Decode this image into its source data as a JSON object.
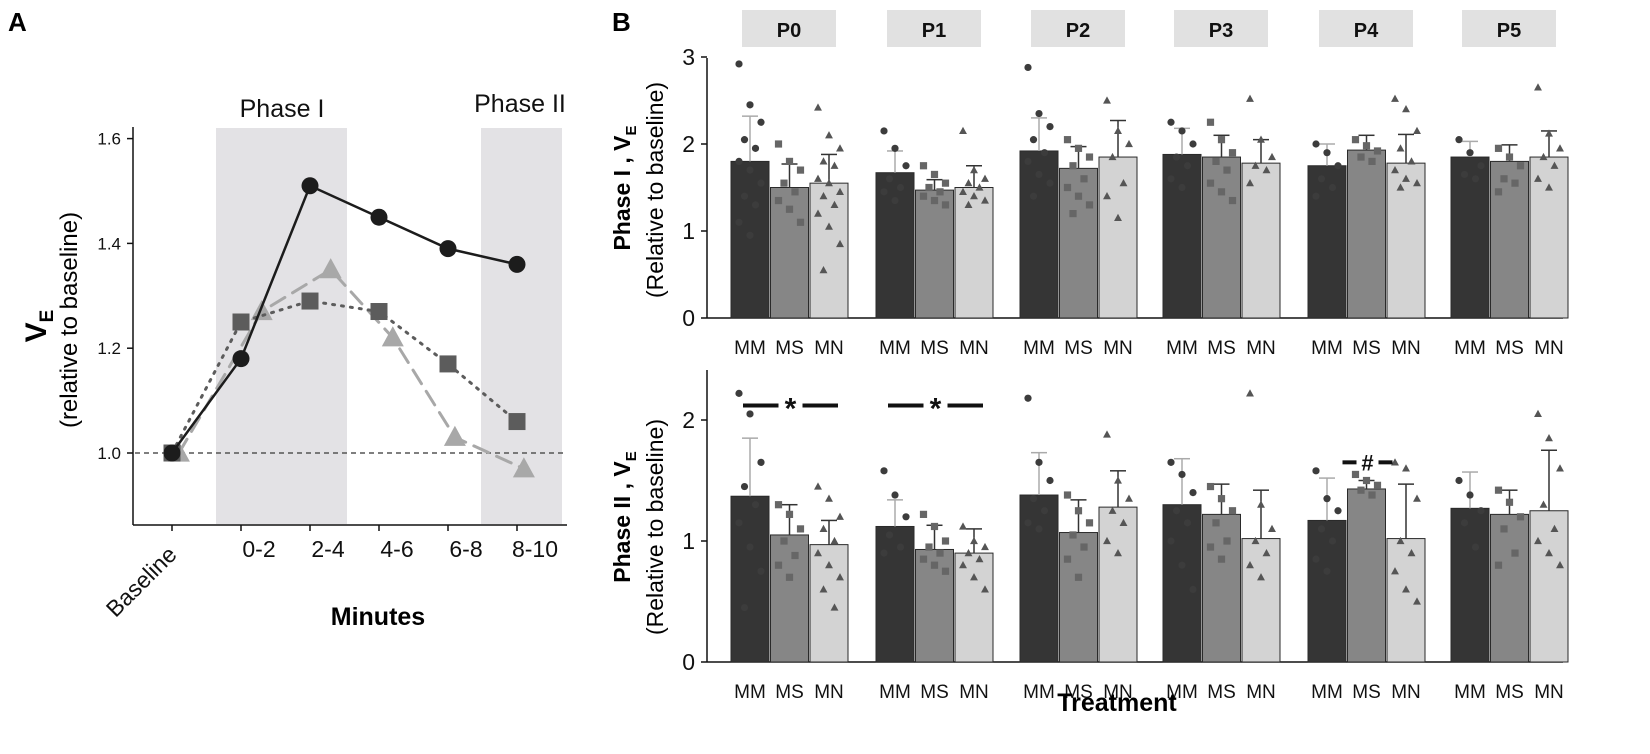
{
  "panel_a": {
    "letter": "A",
    "phase_labels": [
      "Phase I",
      "Phase II"
    ],
    "ylabel_main": "V",
    "ylabel_sub": "E",
    "ylabel2": "(relative to baseline)",
    "xlabel": "Minutes"
  },
  "panel_b": {
    "letter": "B",
    "xlabel": "Treatment",
    "row1_ylabel_a": "Phase I , V",
    "row1_ylabel_sub": "E",
    "row1_ylabel_b": "(Relative to baseline)",
    "row2_ylabel_a": "Phase II , V",
    "row2_ylabel_sub": "E",
    "row2_ylabel_b": "(Relative to baseline)"
  },
  "chart_data": [
    {
      "type": "line",
      "title": "",
      "xlabel": "Minutes",
      "ylabel": "VE (relative to baseline)",
      "categories": [
        "Baseline",
        "0-2",
        "2-4",
        "4-6",
        "6-8",
        "8-10"
      ],
      "ylim": [
        0.88,
        1.64
      ],
      "yticks": [
        1.0,
        1.2,
        1.4,
        1.6
      ],
      "yticklabels": [
        "1.0",
        "1.2",
        "1.4",
        "1.6"
      ],
      "reference_line": 1.0,
      "shaded_regions": [
        {
          "label": "Phase I",
          "from": "0-2",
          "to": "2-4"
        },
        {
          "label": "Phase II",
          "from": "8-10",
          "to": "8-10"
        }
      ],
      "series": [
        {
          "name": "MM",
          "marker": "circle",
          "color": "#1c1c1c",
          "style": "solid",
          "x": [
            0,
            1,
            2,
            3,
            4,
            5
          ],
          "values": [
            1.0,
            1.18,
            1.51,
            1.45,
            1.39,
            1.36
          ]
        },
        {
          "name": "MS",
          "marker": "square",
          "color": "#5c5c5c",
          "style": "dotted",
          "x": [
            0,
            1,
            2,
            3,
            4,
            5
          ],
          "values": [
            1.0,
            1.25,
            1.29,
            1.27,
            1.17,
            1.06
          ]
        },
        {
          "name": "MN",
          "marker": "triangle",
          "color": "#a8a8a8",
          "style": "dashed",
          "x": [
            0.1,
            1.3,
            2.3,
            3.2,
            4.1,
            5.1
          ],
          "values": [
            1.0,
            1.27,
            1.35,
            1.22,
            1.03,
            0.97
          ]
        }
      ]
    },
    {
      "type": "bar",
      "title": "Phase I",
      "ylabel": "Phase I , VE (Relative to baseline)",
      "xlabel": "Treatment",
      "facets": [
        "P0",
        "P1",
        "P2",
        "P3",
        "P4",
        "P5"
      ],
      "categories": [
        "MM",
        "MS",
        "MN"
      ],
      "ylim": [
        0,
        3
      ],
      "yticks": [
        0,
        1,
        2,
        3
      ],
      "yticklabels": [
        "0",
        "1",
        "2",
        "3"
      ],
      "colors": [
        "#353535",
        "#868686",
        "#d3d3d3"
      ],
      "markers": [
        "circle",
        "square",
        "triangle"
      ],
      "values": [
        [
          1.8,
          1.5,
          1.55
        ],
        [
          1.67,
          1.47,
          1.5
        ],
        [
          1.92,
          1.72,
          1.85
        ],
        [
          1.88,
          1.85,
          1.78
        ],
        [
          1.75,
          1.93,
          1.78
        ],
        [
          1.85,
          1.8,
          1.85
        ]
      ],
      "errors": [
        [
          0.52,
          0.27,
          0.33
        ],
        [
          0.25,
          0.12,
          0.25
        ],
        [
          0.38,
          0.25,
          0.42
        ],
        [
          0.3,
          0.25,
          0.27
        ],
        [
          0.25,
          0.17,
          0.33
        ],
        [
          0.18,
          0.19,
          0.3
        ]
      ],
      "points": [
        [
          [
            2.92,
            2.45,
            2.25,
            2.05,
            1.95,
            1.8,
            1.7,
            1.55,
            1.4,
            1.3,
            1.1,
            0.95
          ],
          [
            2.0,
            1.8,
            1.7,
            1.55,
            1.45,
            1.35,
            1.25,
            1.1
          ],
          [
            2.42,
            2.1,
            1.95,
            1.8,
            1.75,
            1.6,
            1.55,
            1.45,
            1.4,
            1.3,
            1.2,
            1.05,
            0.85,
            0.55
          ]
        ],
        [
          [
            2.15,
            1.95,
            1.75,
            1.6,
            1.5,
            1.45,
            1.35
          ],
          [
            1.75,
            1.65,
            1.55,
            1.5,
            1.45,
            1.4,
            1.35,
            1.3
          ],
          [
            2.15,
            1.7,
            1.6,
            1.55,
            1.5,
            1.45,
            1.4,
            1.35,
            1.3
          ]
        ],
        [
          [
            2.88,
            2.35,
            2.2,
            2.05,
            1.9,
            1.8,
            1.65,
            1.55,
            1.4
          ],
          [
            2.05,
            1.95,
            1.85,
            1.75,
            1.6,
            1.5,
            1.4,
            1.3,
            1.2
          ],
          [
            2.5,
            2.15,
            2.0,
            1.85,
            1.55,
            1.4,
            1.15
          ]
        ],
        [
          [
            2.25,
            2.15,
            2.0,
            1.85,
            1.75,
            1.6,
            1.5
          ],
          [
            2.25,
            2.05,
            1.9,
            1.8,
            1.7,
            1.55,
            1.45,
            1.35
          ],
          [
            2.52,
            2.05,
            1.85,
            1.75,
            1.7,
            1.55
          ]
        ],
        [
          [
            2.0,
            1.9,
            1.75,
            1.6,
            1.5,
            1.4
          ],
          [
            2.05,
            1.98,
            1.92,
            1.85,
            1.8
          ],
          [
            2.52,
            2.4,
            2.15,
            1.95,
            1.8,
            1.7,
            1.6,
            1.55,
            1.5
          ]
        ],
        [
          [
            2.05,
            1.9,
            1.75,
            1.65,
            1.6
          ],
          [
            1.95,
            1.85,
            1.75,
            1.6,
            1.55,
            1.45
          ],
          [
            2.65,
            2.12,
            1.95,
            1.85,
            1.75,
            1.6,
            1.5
          ]
        ]
      ],
      "annotations": []
    },
    {
      "type": "bar",
      "title": "Phase II",
      "ylabel": "Phase II , VE (Relative to baseline)",
      "xlabel": "Treatment",
      "facets": [
        "P0",
        "P1",
        "P2",
        "P3",
        "P4",
        "P5"
      ],
      "categories": [
        "MM",
        "MS",
        "MN"
      ],
      "ylim": [
        0,
        2.5
      ],
      "yticks": [
        0,
        1,
        2
      ],
      "yticklabels": [
        "0",
        "1",
        "2"
      ],
      "colors": [
        "#353535",
        "#868686",
        "#d3d3d3"
      ],
      "markers": [
        "circle",
        "square",
        "triangle"
      ],
      "values": [
        [
          1.37,
          1.05,
          0.97
        ],
        [
          1.12,
          0.93,
          0.9
        ],
        [
          1.38,
          1.07,
          1.28
        ],
        [
          1.3,
          1.22,
          1.02
        ],
        [
          1.17,
          1.43,
          1.02
        ],
        [
          1.27,
          1.22,
          1.25
        ]
      ],
      "errors": [
        [
          0.48,
          0.25,
          0.2
        ],
        [
          0.22,
          0.2,
          0.2
        ],
        [
          0.35,
          0.27,
          0.3
        ],
        [
          0.38,
          0.25,
          0.4
        ],
        [
          0.35,
          0.07,
          0.45
        ],
        [
          0.3,
          0.2,
          0.5
        ]
      ],
      "points": [
        [
          [
            2.22,
            2.05,
            1.65,
            1.45,
            1.3,
            1.15,
            0.95,
            0.75,
            0.45
          ],
          [
            1.3,
            1.22,
            1.1,
            1.0,
            0.88,
            0.8,
            0.7
          ],
          [
            1.45,
            1.35,
            1.2,
            1.1,
            1.0,
            0.9,
            0.8,
            0.7,
            0.6,
            0.45
          ]
        ],
        [
          [
            1.58,
            1.38,
            1.2,
            1.05,
            0.95,
            0.9
          ],
          [
            1.22,
            1.12,
            1.0,
            0.95,
            0.9,
            0.85,
            0.8,
            0.75
          ],
          [
            1.12,
            1.0,
            0.95,
            0.9,
            0.85,
            0.8,
            0.7,
            0.6
          ]
        ],
        [
          [
            2.18,
            1.65,
            1.5,
            1.35,
            1.25,
            1.15,
            1.1
          ],
          [
            1.38,
            1.25,
            1.15,
            1.05,
            0.95,
            0.85,
            0.7
          ],
          [
            1.88,
            1.5,
            1.35,
            1.25,
            1.15,
            1.0,
            0.9
          ]
        ],
        [
          [
            1.65,
            1.55,
            1.4,
            1.25,
            1.15,
            1.0,
            0.8,
            0.6
          ],
          [
            1.45,
            1.35,
            1.25,
            1.15,
            1.0,
            0.95,
            0.85
          ],
          [
            2.22,
            1.3,
            1.1,
            1.0,
            0.9,
            0.8,
            0.7
          ]
        ],
        [
          [
            1.58,
            1.35,
            1.25,
            1.1,
            1.0,
            0.85,
            0.75
          ],
          [
            1.55,
            1.5,
            1.46,
            1.42,
            1.38
          ],
          [
            1.65,
            1.6,
            1.35,
            1.0,
            0.9,
            0.75,
            0.6,
            0.5
          ]
        ],
        [
          [
            1.5,
            1.38,
            1.25,
            1.15,
            0.95
          ],
          [
            1.42,
            1.32,
            1.2,
            1.1,
            0.9,
            0.8
          ],
          [
            2.05,
            1.85,
            1.6,
            1.3,
            1.1,
            1.0,
            0.9,
            0.8
          ]
        ]
      ],
      "annotations": [
        {
          "facet": "P0",
          "from": "MM",
          "to": "MN",
          "label": "*",
          "y": 2.12
        },
        {
          "facet": "P1",
          "from": "MM",
          "to": "MN",
          "label": "*",
          "y": 2.12
        },
        {
          "facet": "P4",
          "from": "MS",
          "to": "MS",
          "label": "#",
          "y": 1.65
        }
      ]
    }
  ]
}
